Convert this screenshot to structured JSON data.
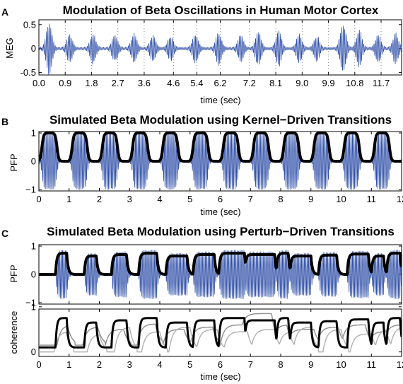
{
  "chart_data": [
    {
      "panel_label": "A",
      "type": "line",
      "title": "Modulation of Beta Oscillations in Human Motor Cortex",
      "xlabel": "time (sec)",
      "ylabel": "MEG",
      "xlim": [
        0,
        12.4
      ],
      "ylim": [
        -0.55,
        0.6
      ],
      "xticks": [
        "0.0",
        "0.9",
        "1.8",
        "2.7",
        "3.6",
        "4.6",
        "5.4",
        "6.2",
        "7.2",
        "8.1",
        "9.0",
        "9.9",
        "10.8",
        "11.7"
      ],
      "yticks": [
        "-0.5",
        "0",
        "0.5"
      ],
      "grid": "vertical dotted",
      "series": [
        {
          "color": "#2f4fa8",
          "burst_centers": [
            0.35,
            1.05,
            1.85,
            2.6,
            3.25,
            3.9,
            4.5,
            5.35,
            6.15,
            6.9,
            7.5,
            8.2,
            8.9,
            9.5,
            10.4,
            10.95,
            11.6,
            12.2
          ],
          "burst_amplitudes": [
            0.58,
            0.3,
            0.32,
            0.28,
            0.3,
            0.28,
            0.26,
            0.32,
            0.34,
            0.28,
            0.36,
            0.38,
            0.3,
            0.26,
            0.55,
            0.4,
            0.3,
            0.32
          ]
        }
      ]
    },
    {
      "panel_label": "B",
      "type": "line",
      "title": "Simulated Beta Modulation using Kernel−Driven Transitions",
      "xlabel": "time (sec)",
      "ylabel": "PFP",
      "xlim": [
        0,
        12
      ],
      "ylim": [
        -1.05,
        1.05
      ],
      "xticks": [
        "0",
        "1",
        "2",
        "3",
        "4",
        "5",
        "6",
        "7",
        "8",
        "9",
        "10",
        "11",
        "12"
      ],
      "yticks": [
        "−1",
        "0",
        "1"
      ],
      "series": [
        {
          "color": "#2f4fa8",
          "cycle_sec": 1.0,
          "high_from": 0.1,
          "high_to": 0.6,
          "high": 1.0,
          "low": 0.0
        },
        {
          "color": "#000000",
          "cycle_sec": 1.0,
          "high_from": 0.1,
          "high_to": 0.6,
          "high": 1.0,
          "low": 0.0
        }
      ]
    },
    {
      "panel_label": "C",
      "type": "line",
      "title": "Simulated Beta Modulation using Perturb−Driven Transitions",
      "xlabel": "",
      "ylabel": "PFP",
      "xlim": [
        0,
        12
      ],
      "ylim": [
        -1.05,
        1.05
      ],
      "xticks": [],
      "yticks": [
        "−1",
        "0",
        "1"
      ],
      "series": [
        {
          "color": "#2f4fa8",
          "steps": [
            [
              0.55,
              0.92,
              0.75
            ],
            [
              1.5,
              1.9,
              0.65
            ],
            [
              2.4,
              2.9,
              0.7
            ],
            [
              3.3,
              3.9,
              0.75
            ],
            [
              4.2,
              4.9,
              0.65
            ],
            [
              5.1,
              5.8,
              0.7
            ],
            [
              5.95,
              6.8,
              0.75
            ],
            [
              6.8,
              7.8,
              0.7
            ],
            [
              7.85,
              8.25,
              0.75
            ],
            [
              8.3,
              9.0,
              0.65
            ],
            [
              9.25,
              9.85,
              0.68
            ],
            [
              10.2,
              10.9,
              0.72
            ],
            [
              11.0,
              11.4,
              0.65
            ],
            [
              11.5,
              11.95,
              0.75
            ]
          ],
          "floor": 0.0
        },
        {
          "color": "#000000",
          "steps": [
            [
              0.55,
              0.92,
              0.75
            ],
            [
              1.5,
              1.9,
              0.65
            ],
            [
              2.4,
              2.9,
              0.7
            ],
            [
              3.3,
              3.9,
              0.75
            ],
            [
              4.2,
              4.9,
              0.65
            ],
            [
              5.1,
              5.8,
              0.7
            ],
            [
              5.95,
              6.8,
              0.75
            ],
            [
              6.8,
              7.8,
              0.7
            ],
            [
              7.85,
              8.25,
              0.75
            ],
            [
              8.3,
              9.0,
              0.65
            ],
            [
              9.25,
              9.85,
              0.68
            ],
            [
              10.2,
              10.9,
              0.72
            ],
            [
              11.0,
              11.4,
              0.65
            ],
            [
              11.5,
              11.95,
              0.75
            ]
          ],
          "floor": 0.0
        }
      ]
    },
    {
      "panel_label": "",
      "type": "line",
      "title": "",
      "xlabel": "time (sec)",
      "ylabel": "coherence",
      "xlim": [
        0,
        12
      ],
      "ylim": [
        -0.1,
        0.95
      ],
      "xticks": [
        "0",
        "1",
        "2",
        "3",
        "4",
        "5",
        "6",
        "7",
        "8",
        "9",
        "10",
        "11",
        "12"
      ],
      "yticks": [
        "0",
        "1"
      ],
      "series": [
        {
          "color": "#000000",
          "steps": [
            [
              0.55,
              0.92,
              0.75
            ],
            [
              1.5,
              1.9,
              0.65
            ],
            [
              2.4,
              2.9,
              0.7
            ],
            [
              3.3,
              3.9,
              0.75
            ],
            [
              4.2,
              4.9,
              0.65
            ],
            [
              5.1,
              5.8,
              0.7
            ],
            [
              5.95,
              6.8,
              0.75
            ],
            [
              6.8,
              7.8,
              0.7
            ],
            [
              7.85,
              8.25,
              0.75
            ],
            [
              8.3,
              9.0,
              0.65
            ],
            [
              9.25,
              9.85,
              0.68
            ],
            [
              10.2,
              10.9,
              0.72
            ],
            [
              11.0,
              11.4,
              0.65
            ],
            [
              11.5,
              11.95,
              0.75
            ]
          ],
          "floor": 0.1
        },
        {
          "color": "#8c8c8c",
          "steps": [
            [
              0.6,
              0.95,
              0.6
            ],
            [
              1.45,
              1.95,
              0.55
            ],
            [
              2.2,
              2.8,
              0.5
            ],
            [
              3.25,
              3.85,
              0.62
            ],
            [
              4.1,
              4.8,
              0.5
            ],
            [
              5.0,
              5.75,
              0.55
            ],
            [
              6.0,
              6.85,
              0.6
            ],
            [
              6.6,
              7.7,
              0.85
            ],
            [
              7.7,
              8.2,
              0.6
            ],
            [
              8.2,
              9.1,
              0.5
            ],
            [
              9.2,
              9.9,
              0.55
            ],
            [
              10.0,
              10.8,
              0.6
            ],
            [
              10.9,
              11.5,
              0.45
            ],
            [
              11.4,
              12.0,
              0.6
            ]
          ],
          "floor": 0.15
        },
        {
          "color": "#b0b0b0",
          "steps": [
            [
              0.5,
              0.9,
              0.45
            ],
            [
              1.6,
              2.0,
              0.4
            ],
            [
              2.5,
              3.0,
              0.55
            ],
            [
              3.4,
              4.0,
              0.45
            ],
            [
              4.3,
              5.0,
              0.55
            ],
            [
              5.2,
              5.9,
              0.5
            ],
            [
              6.1,
              6.9,
              0.45
            ],
            [
              7.0,
              7.8,
              0.5
            ],
            [
              7.9,
              8.3,
              0.45
            ],
            [
              8.4,
              9.0,
              0.55
            ],
            [
              9.4,
              10.0,
              0.5
            ],
            [
              10.3,
              11.0,
              0.4
            ],
            [
              11.1,
              11.5,
              0.5
            ],
            [
              11.6,
              12.0,
              0.55
            ]
          ],
          "floor": 0.0
        }
      ]
    }
  ]
}
